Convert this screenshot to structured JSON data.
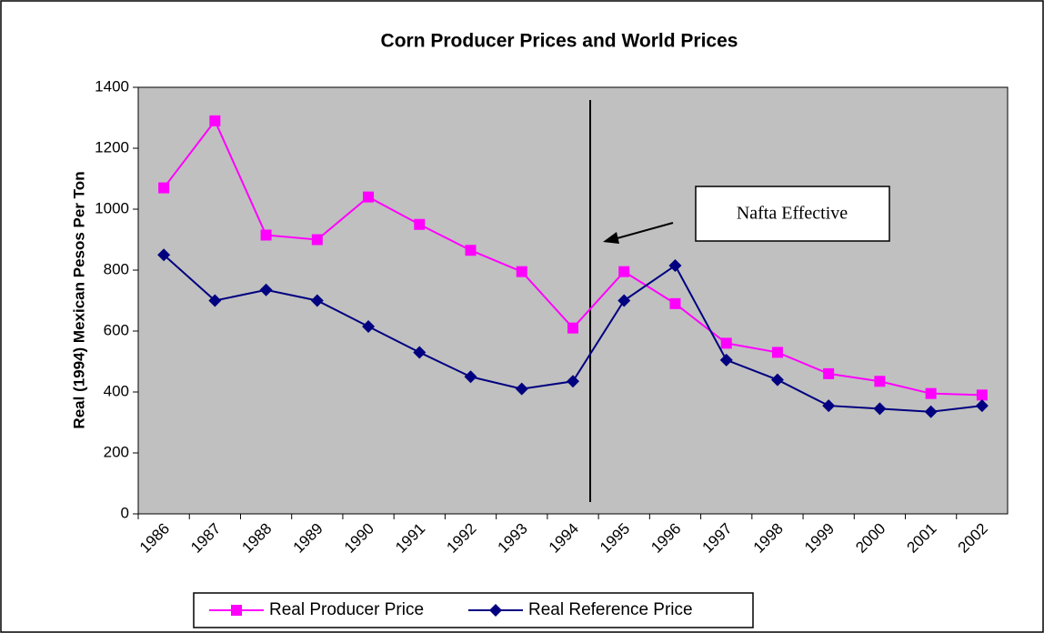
{
  "chart_data": {
    "type": "line",
    "title": "Corn Producer Prices and World Prices",
    "ylabel": "Real (1994) Mexican Pesos Per Ton",
    "annotation": "Nafta Effective",
    "categories": [
      "1986",
      "1987",
      "1988",
      "1989",
      "1990",
      "1991",
      "1992",
      "1993",
      "1994",
      "1995",
      "1996",
      "1997",
      "1998",
      "1999",
      "2000",
      "2001",
      "2002"
    ],
    "series": [
      {
        "name": "Real Producer Price",
        "color": "#ff00ff",
        "marker": "square",
        "values": [
          1070,
          1290,
          915,
          900,
          1040,
          950,
          865,
          795,
          610,
          795,
          690,
          560,
          530,
          460,
          435,
          395,
          390
        ]
      },
      {
        "name": "Real Reference Price",
        "color": "#000080",
        "marker": "diamond",
        "values": [
          850,
          700,
          735,
          700,
          615,
          530,
          450,
          410,
          435,
          700,
          815,
          505,
          440,
          355,
          345,
          335,
          355
        ]
      }
    ],
    "ylim": [
      0,
      1400
    ],
    "yticks": [
      0,
      200,
      400,
      600,
      800,
      1000,
      1200,
      1400
    ],
    "plot_background": "#c0c0c0"
  }
}
